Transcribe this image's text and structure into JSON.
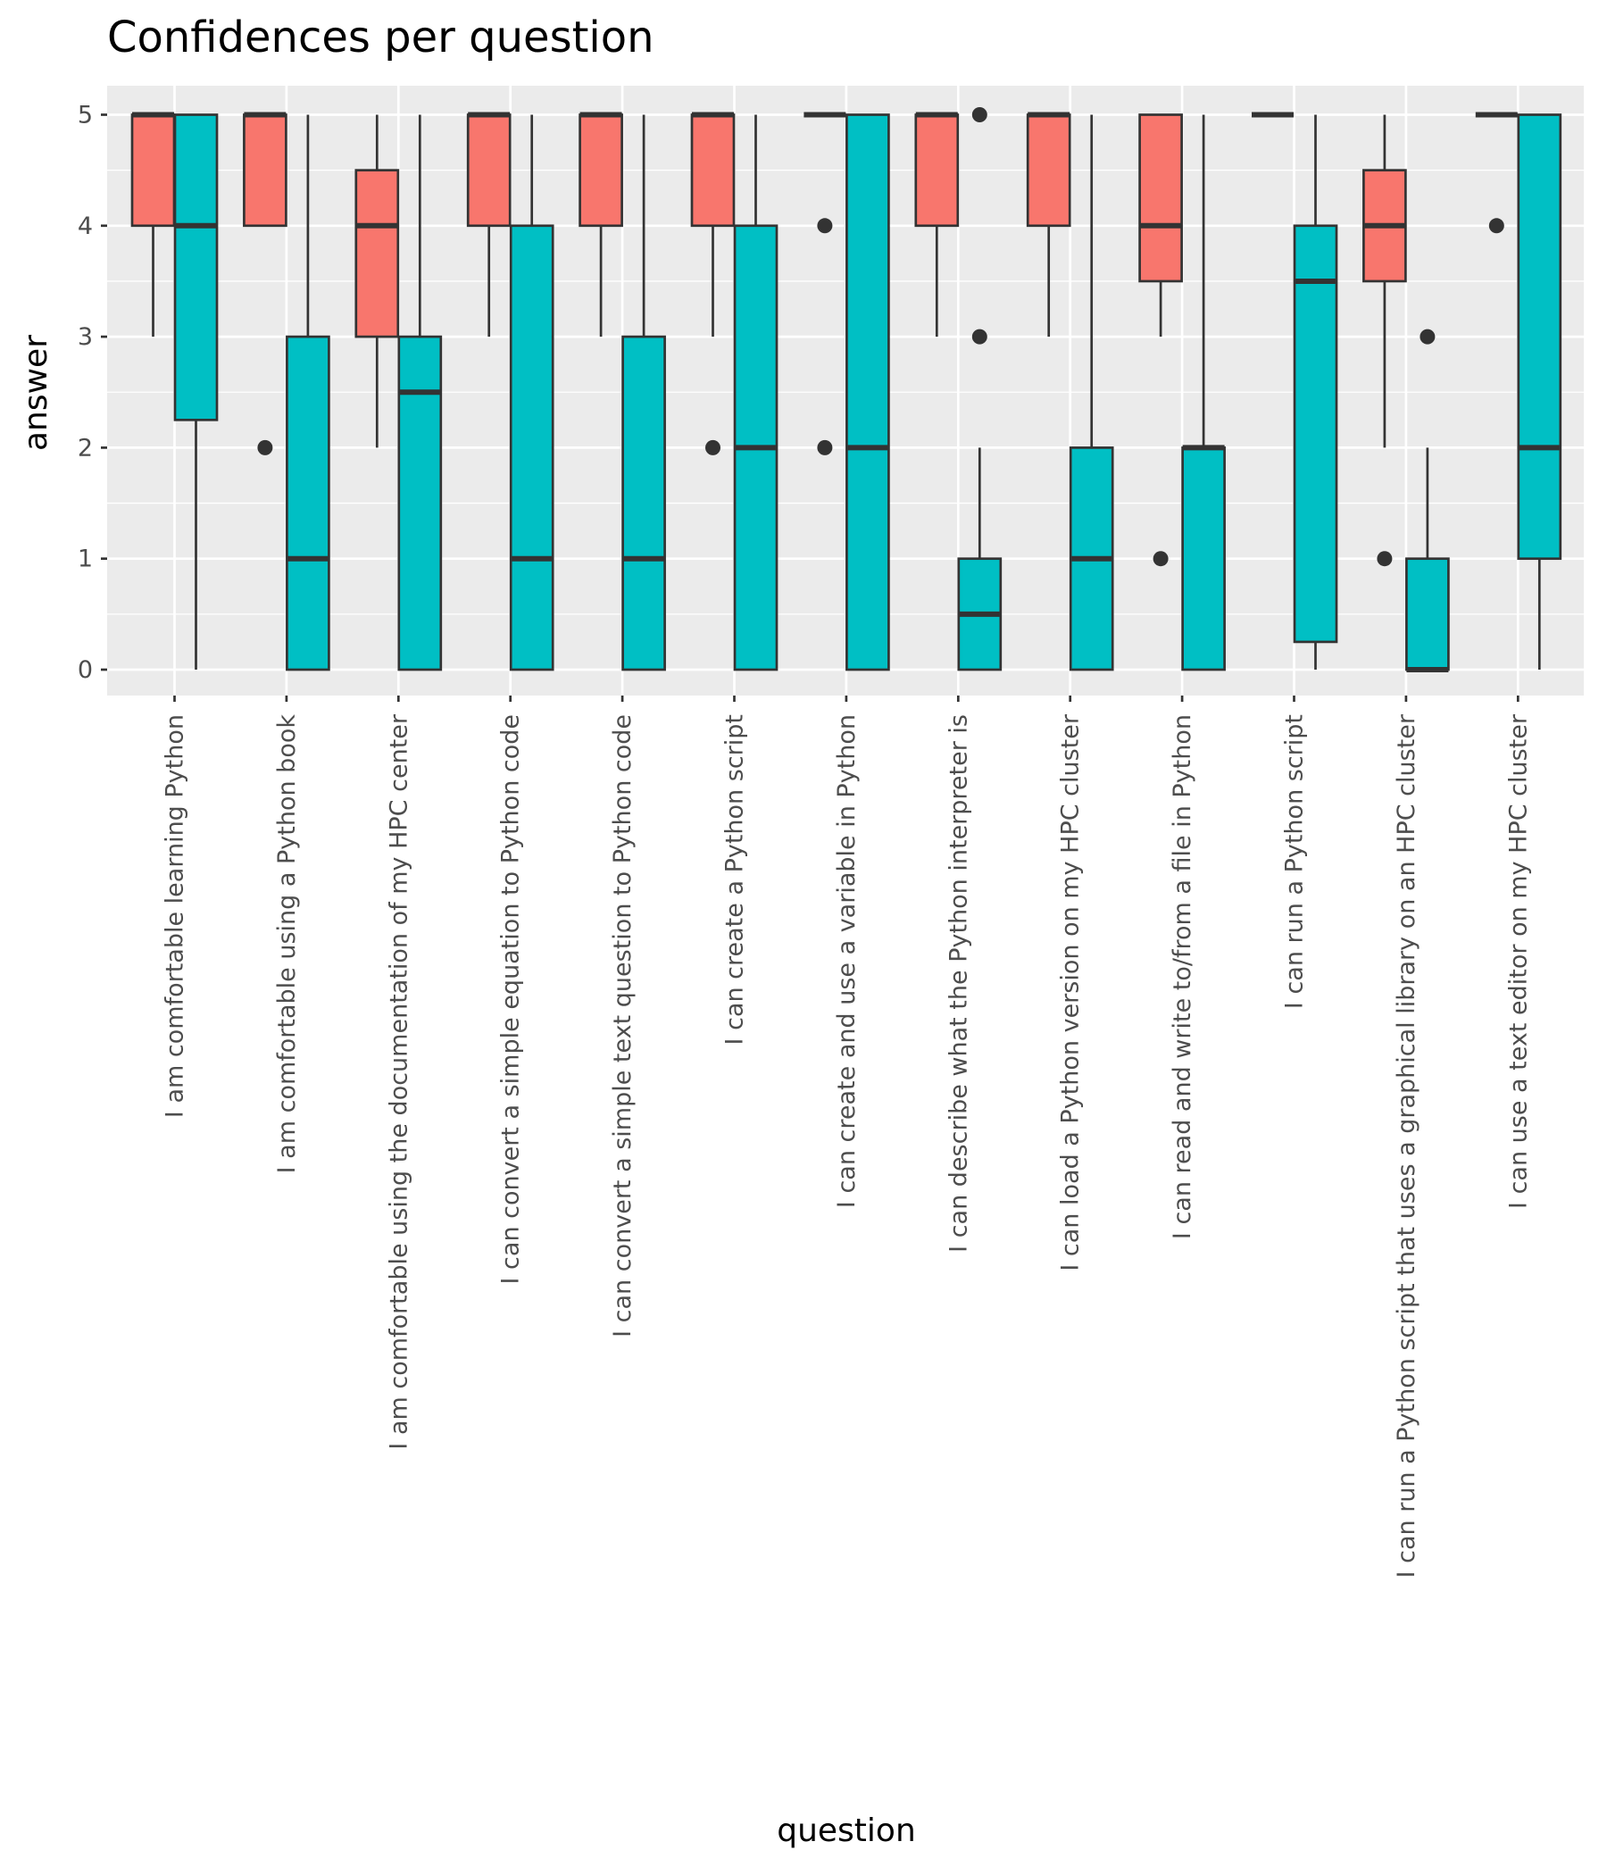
{
  "chart_data": {
    "type": "boxplot",
    "title": "Confidences per question",
    "xlabel": "question",
    "ylabel": "answer",
    "ylim": [
      -0.25,
      5.25
    ],
    "yticks": [
      0,
      1,
      2,
      3,
      4,
      5
    ],
    "grid": true,
    "legend": "none",
    "colors": [
      "#F8766D",
      "#00BFC4"
    ],
    "categories": [
      "I am comfortable learning Python",
      "I am comfortable using a Python book",
      "I am comfortable using the documentation of my HPC center",
      "I can convert a simple equation to Python code",
      "I can convert a simple text question to Python code",
      "I can create a Python script",
      "I can create and use a variable in Python",
      "I can describe what the Python interpreter is",
      "I can load a Python version on my HPC cluster",
      "I can read and write to/from a file in Python",
      "I can run a Python script",
      "I can run a Python script that uses a graphical library on an HPC cluster",
      "I can use a text editor on my HPC cluster"
    ],
    "series": [
      {
        "color": "#F8766D",
        "boxes": [
          {
            "min": 3,
            "q1": 4,
            "median": 5,
            "q3": 5,
            "max": 5,
            "outliers": []
          },
          {
            "min": 4,
            "q1": 4,
            "median": 5,
            "q3": 5,
            "max": 5,
            "outliers": [
              2
            ]
          },
          {
            "min": 2,
            "q1": 3,
            "median": 4,
            "q3": 4.5,
            "max": 5,
            "outliers": []
          },
          {
            "min": 3,
            "q1": 4,
            "median": 5,
            "q3": 5,
            "max": 5,
            "outliers": []
          },
          {
            "min": 3,
            "q1": 4,
            "median": 5,
            "q3": 5,
            "max": 5,
            "outliers": []
          },
          {
            "min": 3,
            "q1": 4,
            "median": 5,
            "q3": 5,
            "max": 5,
            "outliers": [
              2
            ]
          },
          {
            "min": 5,
            "q1": 5,
            "median": 5,
            "q3": 5,
            "max": 5,
            "outliers": [
              4,
              2
            ]
          },
          {
            "min": 3,
            "q1": 4,
            "median": 5,
            "q3": 5,
            "max": 5,
            "outliers": []
          },
          {
            "min": 3,
            "q1": 4,
            "median": 5,
            "q3": 5,
            "max": 5,
            "outliers": []
          },
          {
            "min": 3,
            "q1": 3.5,
            "median": 4,
            "q3": 5,
            "max": 5,
            "outliers": [
              1
            ]
          },
          {
            "min": 5,
            "q1": 5,
            "median": 5,
            "q3": 5,
            "max": 5,
            "outliers": []
          },
          {
            "min": 2,
            "q1": 3.5,
            "median": 4,
            "q3": 4.5,
            "max": 5,
            "outliers": [
              1
            ]
          },
          {
            "min": 5,
            "q1": 5,
            "median": 5,
            "q3": 5,
            "max": 5,
            "outliers": [
              4
            ]
          }
        ]
      },
      {
        "color": "#00BFC4",
        "boxes": [
          {
            "min": 0,
            "q1": 2.25,
            "median": 4,
            "q3": 5,
            "max": 5,
            "outliers": []
          },
          {
            "min": 0,
            "q1": 0,
            "median": 1,
            "q3": 3,
            "max": 5,
            "outliers": []
          },
          {
            "min": 0,
            "q1": 0,
            "median": 2.5,
            "q3": 3,
            "max": 5,
            "outliers": []
          },
          {
            "min": 0,
            "q1": 0,
            "median": 1,
            "q3": 4,
            "max": 5,
            "outliers": []
          },
          {
            "min": 0,
            "q1": 0,
            "median": 1,
            "q3": 3,
            "max": 5,
            "outliers": []
          },
          {
            "min": 0,
            "q1": 0,
            "median": 2,
            "q3": 4,
            "max": 5,
            "outliers": []
          },
          {
            "min": 0,
            "q1": 0,
            "median": 2,
            "q3": 5,
            "max": 5,
            "outliers": []
          },
          {
            "min": 0,
            "q1": 0,
            "median": 0.5,
            "q3": 1,
            "max": 2,
            "outliers": [
              5,
              3
            ]
          },
          {
            "min": 0,
            "q1": 0,
            "median": 1,
            "q3": 2,
            "max": 5,
            "outliers": []
          },
          {
            "min": 0,
            "q1": 0,
            "median": 2,
            "q3": 2,
            "max": 5,
            "outliers": []
          },
          {
            "min": 0,
            "q1": 0.25,
            "median": 3.5,
            "q3": 4,
            "max": 5,
            "outliers": []
          },
          {
            "min": 0,
            "q1": 0,
            "median": 0,
            "q3": 1,
            "max": 2,
            "outliers": [
              3
            ]
          },
          {
            "min": 0,
            "q1": 1,
            "median": 2,
            "q3": 5,
            "max": 5,
            "outliers": []
          }
        ]
      }
    ]
  }
}
